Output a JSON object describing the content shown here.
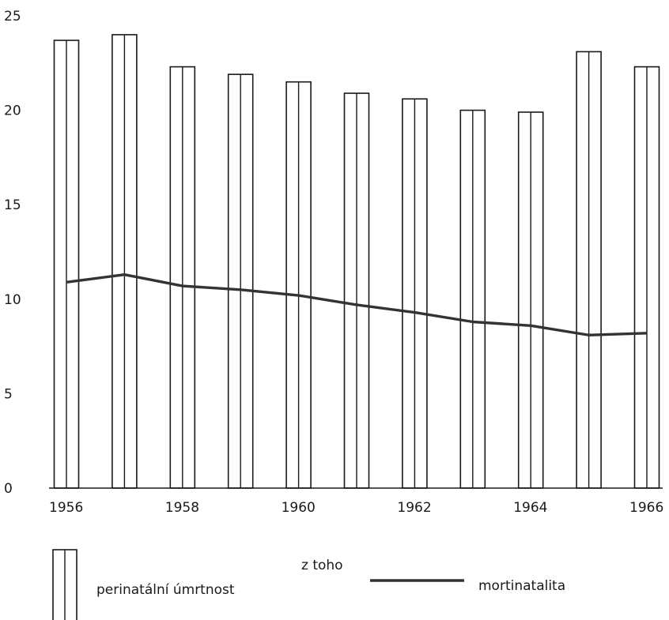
{
  "chart_data": {
    "type": "bar",
    "categories": [
      "1956",
      "1957",
      "1958",
      "1959",
      "1960",
      "1961",
      "1962",
      "1963",
      "1964",
      "1965",
      "1966"
    ],
    "x_tick_labels": [
      "1956",
      "1958",
      "1960",
      "1962",
      "1964",
      "1966"
    ],
    "y_tick_labels": [
      "0",
      "5",
      "10",
      "15",
      "20",
      "25"
    ],
    "ylim": [
      0,
      25
    ],
    "grid": false,
    "series": [
      {
        "name": "perinatální úmrtnost",
        "type": "bar",
        "values": [
          23.7,
          24.0,
          22.3,
          21.9,
          21.5,
          20.9,
          20.6,
          20.0,
          19.9,
          23.1,
          22.3
        ]
      },
      {
        "name": "mortinatalita",
        "type": "line",
        "values": [
          10.9,
          11.3,
          10.7,
          10.5,
          10.2,
          9.7,
          9.3,
          8.8,
          8.6,
          8.1,
          8.2
        ]
      }
    ],
    "legend": {
      "placement": "bottom",
      "bar_label": "perinatální úmrtnost",
      "subset_label": "z toho",
      "line_label": "mortinatalita"
    },
    "colors": {
      "ink": "#1a1a1a",
      "line": "#333333",
      "background": "#ffffff"
    }
  }
}
